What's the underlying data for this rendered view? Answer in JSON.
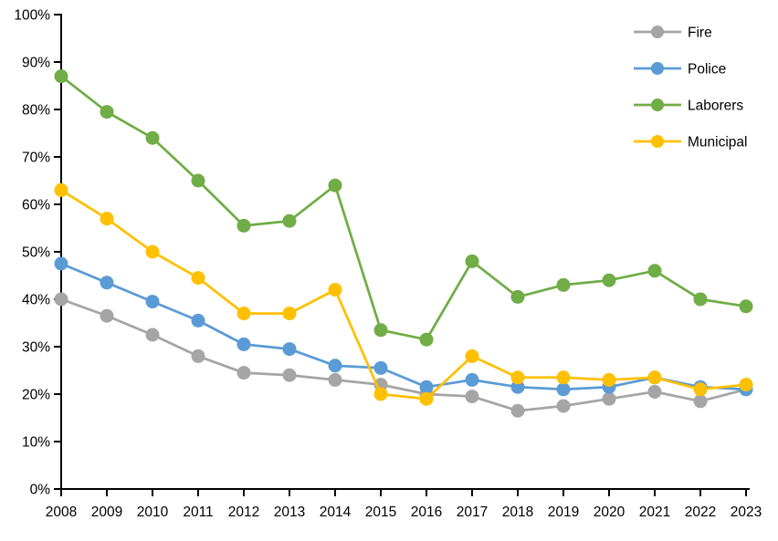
{
  "chart_data": {
    "type": "line",
    "title": "",
    "xlabel": "",
    "ylabel": "",
    "x_labels": [
      "2008",
      "2009",
      "2010",
      "2011",
      "2012",
      "2013",
      "2014",
      "2015",
      "2016",
      "2017",
      "2018",
      "2019",
      "2020",
      "2021",
      "2022",
      "2023"
    ],
    "series": [
      {
        "name": "Fire",
        "color": "#A5A5A5",
        "values": [
          40,
          36.5,
          32.5,
          28,
          24.5,
          24,
          23,
          22,
          20,
          19.5,
          16.5,
          17.5,
          19,
          20.5,
          18.5,
          21
        ]
      },
      {
        "name": "Police",
        "color": "#5B9BD5",
        "values": [
          47.5,
          43.5,
          39.5,
          35.5,
          30.5,
          29.5,
          26,
          25.5,
          21.5,
          23,
          21.5,
          21,
          21.5,
          23.5,
          21.5,
          21
        ]
      },
      {
        "name": "Laborers",
        "color": "#70AD47",
        "values": [
          87,
          79.5,
          74,
          65,
          55.5,
          56.5,
          64,
          33.5,
          31.5,
          48,
          40.5,
          43,
          44,
          46,
          40,
          38.5
        ]
      },
      {
        "name": "Municipal",
        "color": "#FFC000",
        "values": [
          63,
          57,
          50,
          44.5,
          37,
          37,
          42,
          20,
          19,
          28,
          23.5,
          23.5,
          23,
          23.5,
          21,
          22
        ]
      }
    ],
    "value_unit": "%",
    "ylim": [
      0,
      100
    ],
    "ytick_step": 10,
    "ytick_labels": [
      "0%",
      "10%",
      "20%",
      "30%",
      "40%",
      "50%",
      "60%",
      "70%",
      "80%",
      "90%",
      "100%"
    ],
    "grid": false,
    "legend": {
      "position": "top-right",
      "items": [
        "Fire",
        "Police",
        "Laborers",
        "Municipal"
      ]
    },
    "axis_color": "#000000",
    "background_color": "#FFFFFF"
  }
}
